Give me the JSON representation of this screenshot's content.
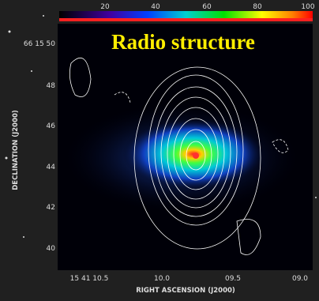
{
  "title": "Radio structure",
  "colorbar": {
    "ticks": [
      "20",
      "40",
      "60",
      "80",
      "100"
    ]
  },
  "y_axis": {
    "label": "DECLINATION (J2000)",
    "ticks": [
      "66 15 50",
      "48",
      "46",
      "44",
      "42",
      "40"
    ]
  },
  "x_axis": {
    "label": "RIGHT ASCENSION (J2000)",
    "ticks": [
      "15 41 10.5",
      "10.0",
      "09.5",
      "09.0"
    ]
  }
}
